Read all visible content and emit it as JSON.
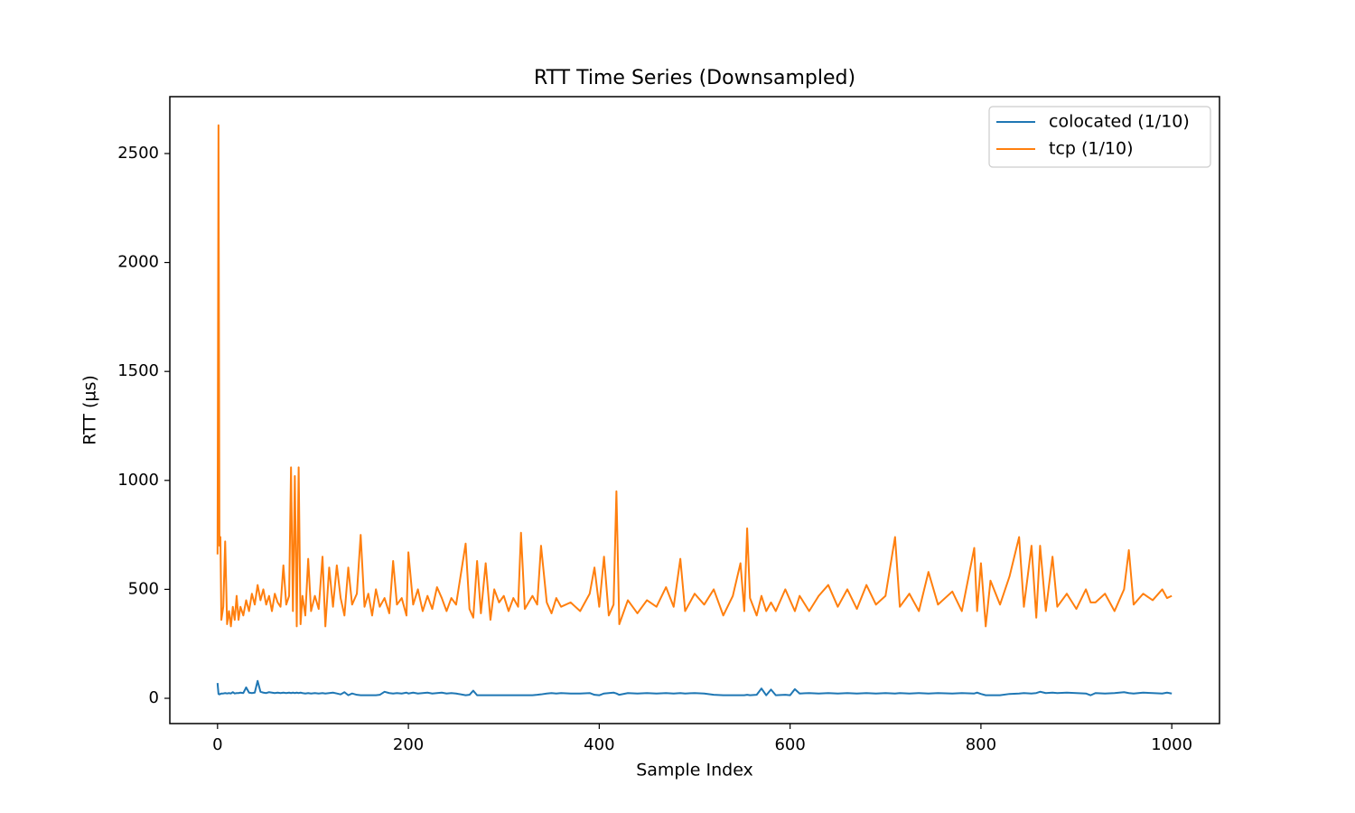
{
  "chart_data": {
    "type": "line",
    "title": "RTT Time Series (Downsampled)",
    "xlabel": "Sample Index",
    "ylabel": "RTT (µs)",
    "x": [
      0,
      1,
      2,
      3,
      4,
      6,
      8,
      10,
      12,
      14,
      16,
      18,
      20,
      22,
      24,
      27,
      30,
      33,
      36,
      39,
      42,
      45,
      48,
      51,
      54,
      57,
      60,
      63,
      66,
      69,
      72,
      75,
      77,
      79,
      81,
      83,
      85,
      87,
      89,
      92,
      95,
      98,
      102,
      106,
      110,
      113,
      117,
      121,
      125,
      129,
      133,
      137,
      141,
      146,
      150,
      154,
      158,
      162,
      166,
      170,
      175,
      180,
      184,
      188,
      193,
      198,
      200,
      205,
      210,
      215,
      220,
      225,
      230,
      235,
      240,
      245,
      250,
      260,
      264,
      268,
      272,
      276,
      281,
      286,
      290,
      295,
      300,
      305,
      310,
      315,
      318,
      322,
      330,
      335,
      339,
      345,
      350,
      355,
      360,
      370,
      380,
      390,
      395,
      400,
      405,
      410,
      415,
      418,
      421,
      430,
      440,
      450,
      460,
      470,
      478,
      485,
      490,
      500,
      510,
      520,
      530,
      540,
      548,
      552,
      555,
      558,
      565,
      570,
      575,
      580,
      585,
      595,
      600,
      605,
      610,
      620,
      630,
      640,
      650,
      660,
      670,
      680,
      690,
      700,
      710,
      715,
      725,
      735,
      745,
      755,
      770,
      780,
      793,
      796,
      800,
      805,
      810,
      820,
      830,
      840,
      845,
      853,
      858,
      862,
      868,
      875,
      880,
      890,
      900,
      910,
      915,
      920,
      930,
      940,
      950,
      955,
      960,
      970,
      980,
      990,
      995,
      1000
    ],
    "series": [
      {
        "name": "colocated (1/10)",
        "color": "#1f77b4",
        "values": [
          70,
          20,
          18,
          20,
          22,
          22,
          24,
          22,
          24,
          22,
          28,
          22,
          24,
          24,
          26,
          24,
          50,
          26,
          24,
          26,
          80,
          30,
          26,
          24,
          28,
          26,
          24,
          26,
          24,
          26,
          24,
          26,
          24,
          26,
          24,
          26,
          24,
          26,
          24,
          22,
          24,
          22,
          24,
          22,
          24,
          22,
          24,
          26,
          22,
          18,
          28,
          14,
          22,
          16,
          14,
          14,
          14,
          14,
          14,
          16,
          30,
          24,
          22,
          24,
          22,
          26,
          22,
          26,
          22,
          24,
          26,
          22,
          24,
          26,
          22,
          24,
          22,
          14,
          16,
          35,
          14,
          14,
          14,
          14,
          14,
          14,
          14,
          14,
          14,
          14,
          14,
          14,
          14,
          16,
          18,
          22,
          24,
          22,
          24,
          22,
          22,
          24,
          16,
          14,
          22,
          24,
          26,
          22,
          16,
          24,
          22,
          24,
          22,
          24,
          22,
          24,
          22,
          24,
          22,
          16,
          14,
          14,
          14,
          14,
          16,
          14,
          16,
          45,
          14,
          40,
          14,
          16,
          14,
          42,
          22,
          24,
          22,
          24,
          22,
          24,
          22,
          24,
          22,
          24,
          22,
          24,
          22,
          24,
          22,
          24,
          22,
          24,
          22,
          26,
          20,
          14,
          14,
          14,
          20,
          22,
          24,
          22,
          24,
          30,
          24,
          26,
          24,
          26,
          24,
          22,
          14,
          24,
          22,
          24,
          28,
          24,
          22,
          26,
          24,
          22,
          26,
          22
        ]
      },
      {
        "name": "tcp (1/10)",
        "color": "#ff7f0e",
        "values": [
          660,
          2630,
          700,
          740,
          360,
          420,
          720,
          340,
          400,
          330,
          420,
          360,
          470,
          360,
          420,
          380,
          450,
          400,
          480,
          430,
          520,
          450,
          500,
          430,
          470,
          400,
          480,
          440,
          420,
          610,
          430,
          470,
          1060,
          400,
          1020,
          330,
          1060,
          340,
          470,
          380,
          640,
          400,
          470,
          410,
          650,
          330,
          600,
          420,
          610,
          460,
          380,
          600,
          430,
          480,
          750,
          420,
          480,
          380,
          500,
          420,
          460,
          390,
          630,
          430,
          460,
          380,
          670,
          430,
          500,
          400,
          470,
          410,
          510,
          460,
          400,
          460,
          430,
          710,
          410,
          370,
          630,
          390,
          620,
          360,
          500,
          440,
          470,
          400,
          460,
          420,
          760,
          410,
          470,
          430,
          700,
          440,
          390,
          460,
          420,
          440,
          400,
          480,
          600,
          420,
          650,
          380,
          430,
          950,
          340,
          450,
          390,
          450,
          420,
          510,
          420,
          640,
          400,
          480,
          430,
          500,
          380,
          470,
          620,
          400,
          780,
          460,
          380,
          470,
          400,
          440,
          400,
          500,
          450,
          400,
          470,
          400,
          470,
          520,
          420,
          500,
          410,
          520,
          430,
          470,
          740,
          420,
          480,
          400,
          580,
          430,
          490,
          400,
          690,
          400,
          620,
          330,
          540,
          430,
          560,
          740,
          420,
          700,
          370,
          700,
          400,
          650,
          420,
          480,
          410,
          500,
          440,
          440,
          480,
          400,
          500,
          680,
          430,
          480,
          450,
          500,
          460,
          470
        ]
      }
    ],
    "xlim": [
      -50,
      1050
    ],
    "ylim": [
      -116,
      2761
    ],
    "xticks": [
      0,
      200,
      400,
      600,
      800,
      1000
    ],
    "yticks": [
      0,
      500,
      1000,
      1500,
      2000,
      2500
    ],
    "legend": "upper right"
  }
}
